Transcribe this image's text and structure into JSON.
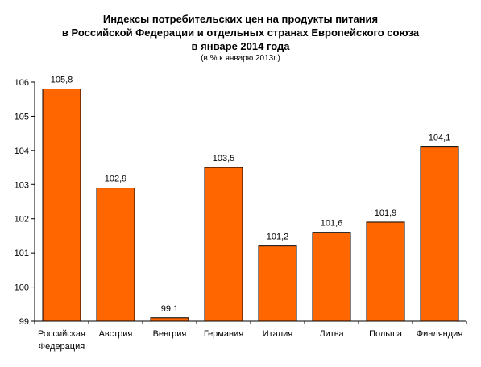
{
  "chart_data": {
    "type": "bar",
    "title_lines": [
      "Индексы потребительских цен на продукты питания",
      "в Российской Федерации и отдельных странах Европейского союза",
      "в январе 2014 года"
    ],
    "subtitle": "(в % к январю 2013г.)",
    "categories": [
      [
        "Российская",
        "Федерация"
      ],
      [
        "Австрия"
      ],
      [
        "Венгрия"
      ],
      [
        "Германия"
      ],
      [
        "Италия"
      ],
      [
        "Литва"
      ],
      [
        "Польша"
      ],
      [
        "Финляндия"
      ]
    ],
    "values": [
      105.8,
      102.9,
      99.1,
      103.5,
      101.2,
      101.6,
      101.9,
      104.1
    ],
    "value_labels": [
      "105,8",
      "102,9",
      "99,1",
      "103,5",
      "101,2",
      "101,6",
      "101,9",
      "104,1"
    ],
    "y_ticks": [
      "99",
      "100",
      "101",
      "102",
      "103",
      "104",
      "105",
      "106"
    ],
    "ylim": [
      99,
      106
    ],
    "grid": false,
    "legend": "none",
    "bar_color": "#ff6600",
    "bar_stroke": "#000000"
  }
}
